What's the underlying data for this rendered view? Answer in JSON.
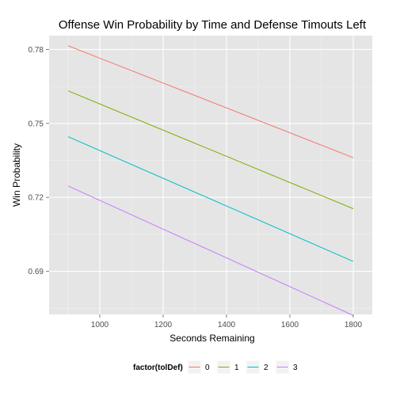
{
  "chart_data": {
    "type": "line",
    "title": "Offense Win Probability by Time and Defense Timouts Left",
    "xlabel": "Seconds Remaining",
    "ylabel": "Win Probability",
    "xlim": [
      840,
      1860
    ],
    "ylim": [
      0.6725,
      0.7856
    ],
    "x_ticks": [
      1000,
      1200,
      1400,
      1600,
      1800
    ],
    "x_tick_labels": [
      "1000",
      "1200",
      "1400",
      "1600",
      "1800"
    ],
    "y_ticks": [
      0.69,
      0.72,
      0.75,
      0.78
    ],
    "y_tick_labels": [
      "0.69",
      "0.72",
      "0.75",
      "0.78"
    ],
    "grid": true,
    "legend": {
      "title": "factor(tolDef)",
      "position": "bottom",
      "entries": [
        "0",
        "1",
        "2",
        "3"
      ]
    },
    "series": [
      {
        "name": "0",
        "color": "#F8766D",
        "x": [
          900,
          1800
        ],
        "y": [
          0.7815,
          0.7361
        ]
      },
      {
        "name": "1",
        "color": "#7CAE00",
        "x": [
          900,
          1800
        ],
        "y": [
          0.7632,
          0.7154
        ]
      },
      {
        "name": "2",
        "color": "#00BFC4",
        "x": [
          900,
          1800
        ],
        "y": [
          0.7446,
          0.694
        ]
      },
      {
        "name": "3",
        "color": "#C77CFF",
        "x": [
          900,
          1800
        ],
        "y": [
          0.7246,
          0.6721
        ]
      }
    ]
  }
}
